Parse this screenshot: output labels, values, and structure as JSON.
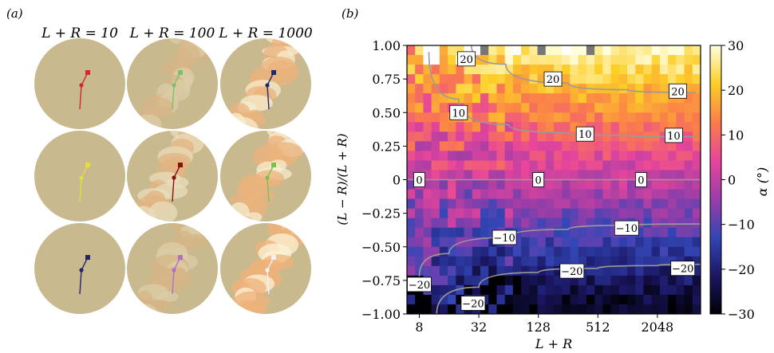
{
  "panel_a": {
    "label": "(a)",
    "columns": [
      "L + R = 10",
      "L + R = 100",
      "L + R = 1000"
    ],
    "disc_color": "#c9b98f",
    "cells": [
      [
        {
          "col": 0,
          "row": 0,
          "texture": 0,
          "track": "#d22a2a"
        },
        {
          "col": 1,
          "row": 0,
          "texture": 0.35,
          "track": "#7fbf6b"
        },
        {
          "col": 2,
          "row": 0,
          "texture": 0.85,
          "track": "#1f2a6a"
        }
      ],
      [
        {
          "col": 0,
          "row": 1,
          "texture": 0,
          "track": "#e6dc3a"
        },
        {
          "col": 1,
          "row": 1,
          "texture": 0.6,
          "track": "#8a1010"
        },
        {
          "col": 2,
          "row": 1,
          "texture": 0.85,
          "track": "#7fbf4f"
        }
      ],
      [
        {
          "col": 0,
          "row": 2,
          "texture": 0,
          "track": "#24246a"
        },
        {
          "col": 1,
          "row": 2,
          "texture": 0.35,
          "track": "#b070c8"
        },
        {
          "col": 2,
          "row": 2,
          "texture": 0.95,
          "track": "#f2f2f2"
        }
      ]
    ]
  },
  "panel_b": {
    "label": "(b)"
  },
  "chart_data": {
    "type": "heatmap",
    "xlabel": "L + R",
    "ylabel": "(L − R)/(L + R)",
    "x_scale": "log2",
    "x_ticks": [
      8,
      32,
      128,
      512,
      2048
    ],
    "x_range": [
      6,
      5600
    ],
    "y_ticks": [
      "1.00",
      "0.75",
      "0.50",
      "0.25",
      "0",
      "−0.25",
      "−0.50",
      "−0.75",
      "−1.00"
    ],
    "y_tick_values": [
      1.0,
      0.75,
      0.5,
      0.25,
      0,
      -0.25,
      -0.5,
      -0.75,
      -1.0
    ],
    "y_range": [
      -1.0,
      1.0
    ],
    "colorbar": {
      "label": "α (°)",
      "ticks": [
        "30",
        "20",
        "10",
        "0",
        "−10",
        "−20",
        "−30"
      ],
      "tick_values": [
        30,
        20,
        10,
        0,
        -10,
        -20,
        -30
      ],
      "range": [
        -30,
        30
      ],
      "colormap": [
        "#000004",
        "#1b1764",
        "#3346b6",
        "#9b3da8",
        "#e8459b",
        "#fb7d4a",
        "#fcce25",
        "#ffffe0"
      ]
    },
    "grid_columns": 36,
    "grid_rows": 28,
    "contours": [
      {
        "level": 20,
        "label": "20",
        "points": [
          [
            27,
            1.0
          ],
          [
            60,
            0.86
          ],
          [
            256,
            0.72
          ],
          [
            1024,
            0.67
          ],
          [
            5000,
            0.65
          ]
        ],
        "label_at": [
          [
            24,
            0.9
          ],
          [
            180,
            0.75
          ],
          [
            3300,
            0.66
          ]
        ]
      },
      {
        "level": 10,
        "label": "10",
        "points": [
          [
            10,
            0.95
          ],
          [
            20,
            0.6
          ],
          [
            64,
            0.41
          ],
          [
            256,
            0.35
          ],
          [
            1024,
            0.33
          ],
          [
            5000,
            0.32
          ]
        ],
        "label_at": [
          [
            20,
            0.5
          ],
          [
            380,
            0.34
          ],
          [
            3000,
            0.33
          ]
        ]
      },
      {
        "level": 0,
        "label": "0",
        "points": [
          [
            6,
            0
          ],
          [
            5600,
            0
          ]
        ],
        "label_at": [
          [
            8,
            0
          ],
          [
            128,
            0
          ],
          [
            1400,
            0
          ]
        ]
      },
      {
        "level": -10,
        "label": "−10",
        "points": [
          [
            8,
            -0.72
          ],
          [
            16,
            -0.55
          ],
          [
            64,
            -0.43
          ],
          [
            256,
            -0.37
          ],
          [
            1024,
            -0.34
          ],
          [
            5600,
            -0.33
          ]
        ],
        "label_at": [
          [
            58,
            -0.43
          ],
          [
            1000,
            -0.36
          ]
        ]
      },
      {
        "level": -20,
        "label": "−20",
        "points": [
          [
            12,
            -1.0
          ],
          [
            32,
            -0.8
          ],
          [
            128,
            -0.69
          ],
          [
            512,
            -0.66
          ],
          [
            2048,
            -0.64
          ],
          [
            5600,
            -0.63
          ]
        ],
        "label_at": [
          [
            8,
            -0.78
          ],
          [
            28,
            -0.92
          ],
          [
            280,
            -0.68
          ],
          [
            3700,
            -0.66
          ]
        ]
      }
    ]
  }
}
